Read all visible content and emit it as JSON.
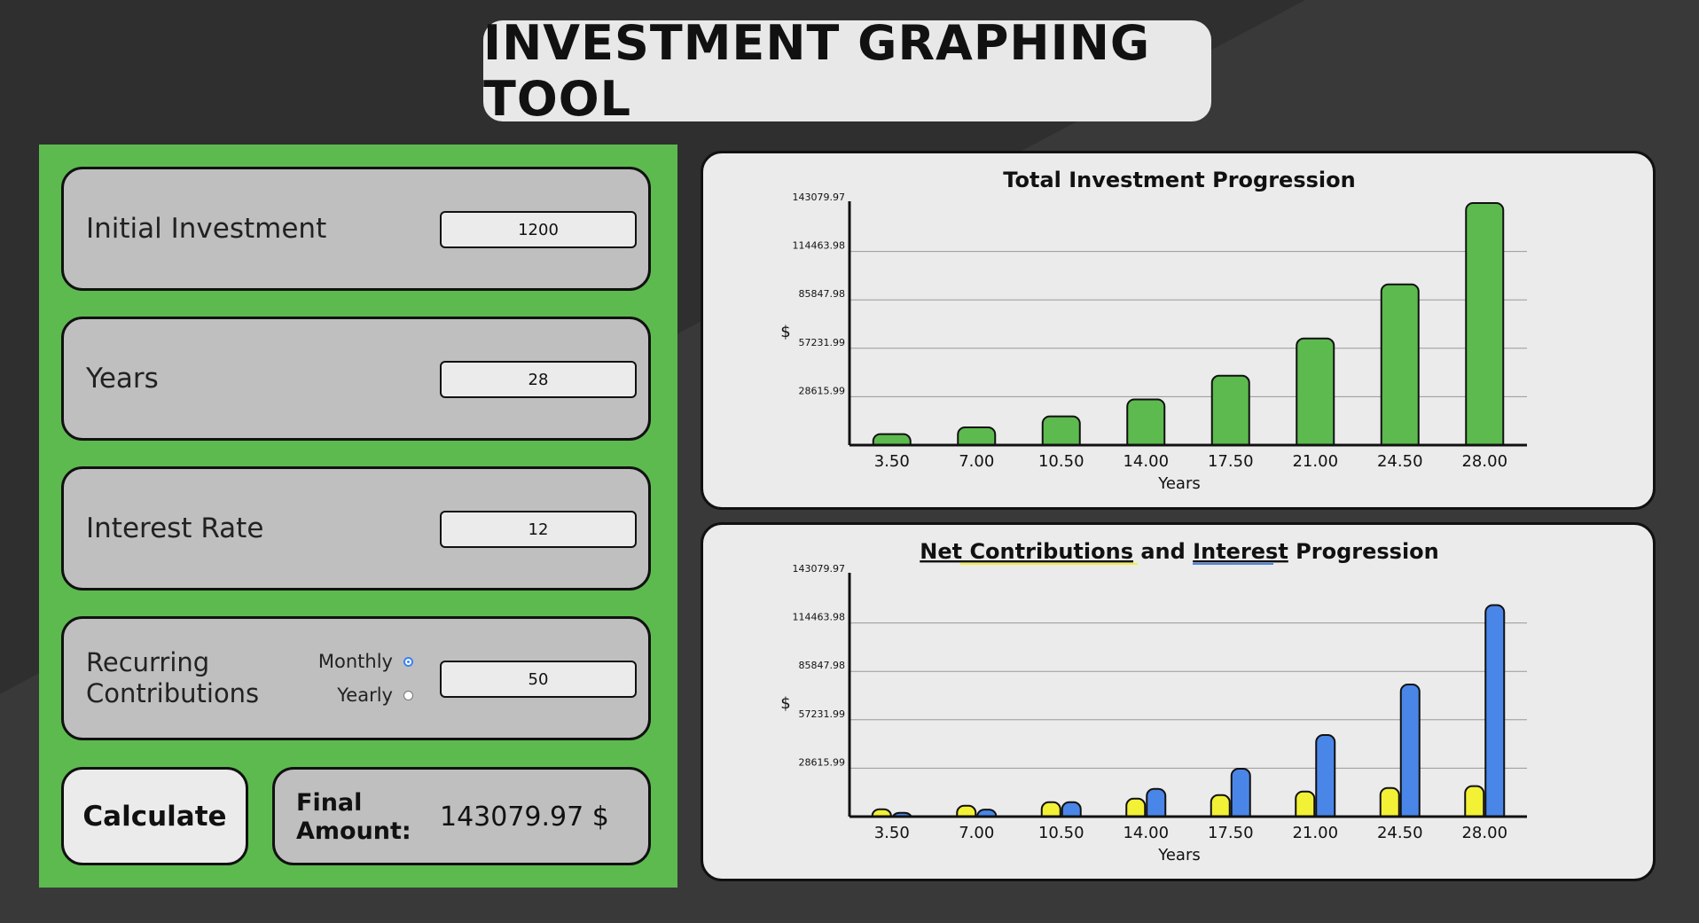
{
  "header": {
    "title": "INVESTMENT GRAPHING TOOL"
  },
  "form": {
    "initial_investment": {
      "label": "Initial Investment",
      "value": "1200"
    },
    "years": {
      "label": "Years",
      "value": "28"
    },
    "interest_rate": {
      "label": "Interest Rate",
      "value": "12"
    },
    "recurring": {
      "label_line1": "Recurring",
      "label_line2": "Contributions",
      "monthly_label": "Monthly",
      "yearly_label": "Yearly",
      "selected": "Monthly",
      "value": "50"
    },
    "calculate_label": "Calculate",
    "final_label_line1": "Final",
    "final_label_line2": "Amount:",
    "final_value": "143079.97 $"
  },
  "colors": {
    "total": "#5dba4f",
    "contributions": "#f3f136",
    "interest": "#4a86e8"
  },
  "chart_data": [
    {
      "type": "bar",
      "title": "Total Investment Progression",
      "xlabel": "Years",
      "ylabel": "$",
      "categories": [
        "3.50",
        "7.00",
        "10.50",
        "14.00",
        "17.50",
        "21.00",
        "24.50",
        "28.00"
      ],
      "y_ticks": [
        "28615.99",
        "57231.99",
        "85847.98",
        "114463.98",
        "143079.97"
      ],
      "ylim": [
        0,
        143079.97
      ],
      "series": [
        {
          "values": [
            6500,
            10500,
            17000,
            27000,
            41000,
            63000,
            95000,
            143079.97
          ]
        }
      ]
    },
    {
      "type": "bar",
      "title_part1": "Net Contributions",
      "title_and": " and ",
      "title_part2": "Interest",
      "title_part3": " Progression",
      "xlabel": "Years",
      "ylabel": "$",
      "categories": [
        "3.50",
        "7.00",
        "10.50",
        "14.00",
        "17.50",
        "21.00",
        "24.50",
        "28.00"
      ],
      "y_ticks": [
        "28615.99",
        "57231.99",
        "85847.98",
        "114463.98",
        "143079.97"
      ],
      "ylim": [
        0,
        143079.97
      ],
      "series": [
        {
          "values": [
            4300,
            6400,
            8500,
            10600,
            12700,
            14800,
            16900,
            18000
          ]
        },
        {
          "values": [
            2200,
            4100,
            8500,
            16400,
            28300,
            48200,
            78100,
            125000
          ]
        }
      ]
    }
  ]
}
